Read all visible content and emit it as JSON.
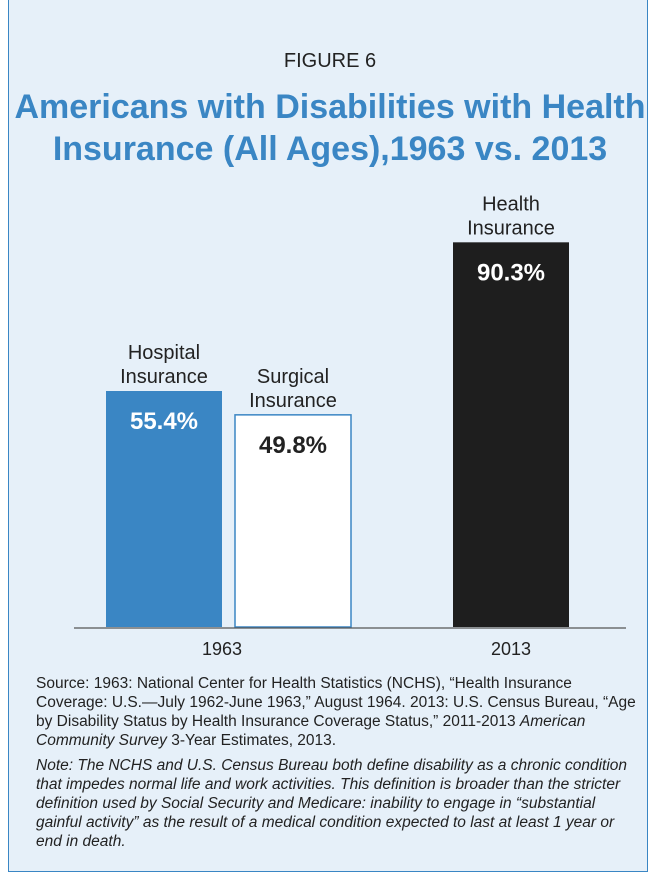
{
  "figure_label": "FIGURE 6",
  "title_line1": "Americans with Disabilities with Health",
  "title_line2": "Insurance (All Ages),1963 vs. 2013",
  "chart_data": {
    "type": "bar",
    "categories": [
      "1963",
      "2013"
    ],
    "ylim": [
      0,
      100
    ],
    "bars": [
      {
        "group": "1963",
        "label_lines": [
          "Hospital",
          "Insurance"
        ],
        "value": 55.4,
        "value_label": "55.4%",
        "color": "#3a86c4",
        "text_color": "#ffffff"
      },
      {
        "group": "1963",
        "label_lines": [
          "Surgical",
          "Insurance"
        ],
        "value": 49.8,
        "value_label": "49.8%",
        "color": "#ffffff",
        "text_color": "#222222"
      },
      {
        "group": "2013",
        "label_lines": [
          "Health",
          "Insurance"
        ],
        "value": 90.3,
        "value_label": "90.3%",
        "color": "#1e1e1e",
        "text_color": "#ffffff"
      }
    ]
  },
  "source": {
    "part1": "Source: 1963: National Center for Health Statistics (NCHS), “Health Insurance Coverage: U.S.—July 1962-June 1963,” August 1964. 2013: U.S. Census Bureau, “Age by Disability Status by Health Insurance Coverage Status,” 2011-2013 ",
    "italic": "American Community Survey",
    "part2": " 3-Year Estimates, 2013."
  },
  "note": "Note: The NCHS and U.S. Census Bureau both define disability as a chronic condition that impedes normal life and work activities. This definition is broader than the stricter definition used by Social Security and Medicare: inability to engage in “substantial gainful activity” as the result of a medical condition expected to last at least 1 year or end in death."
}
